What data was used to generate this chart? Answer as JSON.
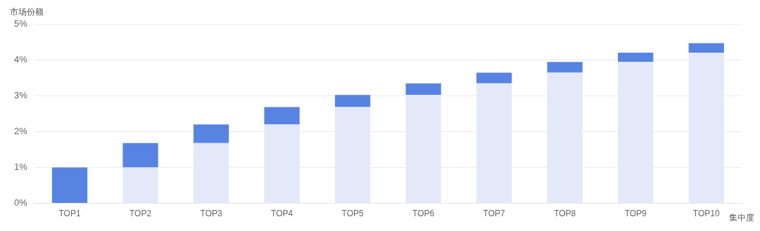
{
  "chart_data": {
    "type": "bar",
    "stacked": true,
    "xlabel": "集中度",
    "ylabel": "市场份额",
    "categories": [
      "TOP1",
      "TOP2",
      "TOP3",
      "TOP4",
      "TOP5",
      "TOP6",
      "TOP7",
      "TOP8",
      "TOP9",
      "TOP10"
    ],
    "series": [
      {
        "color": "#e3e9f8",
        "values": [
          0,
          1.0,
          1.68,
          2.2,
          2.68,
          3.02,
          3.34,
          3.64,
          3.94,
          4.2
        ]
      },
      {
        "color": "#5783e3",
        "values": [
          1.0,
          0.68,
          0.52,
          0.48,
          0.34,
          0.32,
          0.3,
          0.3,
          0.26,
          0.26
        ]
      }
    ],
    "ylim": [
      0,
      5
    ],
    "yticks": [
      {
        "value": 0,
        "label": "0%"
      },
      {
        "value": 1,
        "label": "1%"
      },
      {
        "value": 2,
        "label": "2%"
      },
      {
        "value": 3,
        "label": "3%"
      },
      {
        "value": 4,
        "label": "4%"
      },
      {
        "value": 5,
        "label": "5%"
      }
    ],
    "grid": "y"
  }
}
